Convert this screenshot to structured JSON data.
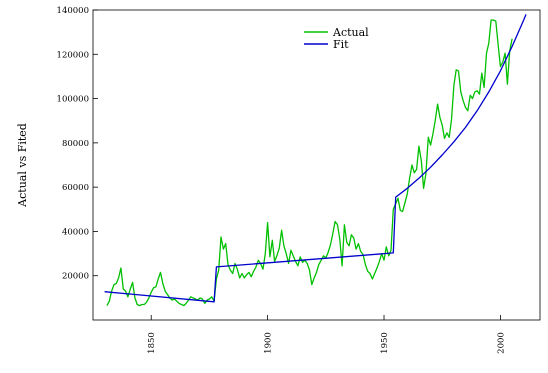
{
  "chart_data": {
    "type": "line",
    "ylabel": "Actual vs Fited",
    "xlim": [
      1825,
      2017
    ],
    "ylim": [
      0,
      140000
    ],
    "x_ticks": [
      1850,
      1900,
      1950,
      2000
    ],
    "y_ticks": [
      20000,
      40000,
      60000,
      80000,
      100000,
      120000,
      140000
    ],
    "legend_position": "top-center",
    "grid": false,
    "series": [
      {
        "name": "Actual",
        "color": "#00c000",
        "points": [
          [
            1831,
            6500
          ],
          [
            1832,
            8500
          ],
          [
            1833,
            13000
          ],
          [
            1834,
            16000
          ],
          [
            1835,
            16500
          ],
          [
            1836,
            19000
          ],
          [
            1837,
            23500
          ],
          [
            1838,
            14000
          ],
          [
            1839,
            13000
          ],
          [
            1840,
            10500
          ],
          [
            1841,
            14000
          ],
          [
            1842,
            17000
          ],
          [
            1843,
            10000
          ],
          [
            1844,
            7000
          ],
          [
            1845,
            6500
          ],
          [
            1846,
            7000
          ],
          [
            1847,
            7000
          ],
          [
            1848,
            8000
          ],
          [
            1849,
            10000
          ],
          [
            1850,
            12500
          ],
          [
            1851,
            14500
          ],
          [
            1852,
            15000
          ],
          [
            1853,
            18500
          ],
          [
            1854,
            21500
          ],
          [
            1855,
            16500
          ],
          [
            1856,
            13000
          ],
          [
            1857,
            11500
          ],
          [
            1858,
            10000
          ],
          [
            1859,
            9000
          ],
          [
            1860,
            9500
          ],
          [
            1861,
            8500
          ],
          [
            1862,
            7500
          ],
          [
            1863,
            7000
          ],
          [
            1864,
            6500
          ],
          [
            1865,
            7500
          ],
          [
            1866,
            9000
          ],
          [
            1867,
            10500
          ],
          [
            1868,
            10000
          ],
          [
            1869,
            9500
          ],
          [
            1870,
            9000
          ],
          [
            1871,
            10000
          ],
          [
            1872,
            9500
          ],
          [
            1873,
            7500
          ],
          [
            1874,
            9000
          ],
          [
            1875,
            9500
          ],
          [
            1876,
            10500
          ],
          [
            1877,
            8500
          ],
          [
            1878,
            18500
          ],
          [
            1879,
            22500
          ],
          [
            1880,
            37500
          ],
          [
            1881,
            32000
          ],
          [
            1882,
            34500
          ],
          [
            1883,
            25000
          ],
          [
            1884,
            22500
          ],
          [
            1885,
            21000
          ],
          [
            1886,
            25500
          ],
          [
            1887,
            23000
          ],
          [
            1888,
            19000
          ],
          [
            1889,
            21000
          ],
          [
            1890,
            19000
          ],
          [
            1891,
            20500
          ],
          [
            1892,
            21500
          ],
          [
            1893,
            19500
          ],
          [
            1894,
            22000
          ],
          [
            1895,
            24000
          ],
          [
            1896,
            27000
          ],
          [
            1897,
            25500
          ],
          [
            1898,
            23000
          ],
          [
            1899,
            30000
          ],
          [
            1900,
            44000
          ],
          [
            1901,
            28500
          ],
          [
            1902,
            36000
          ],
          [
            1903,
            26500
          ],
          [
            1904,
            29000
          ],
          [
            1905,
            32500
          ],
          [
            1906,
            40500
          ],
          [
            1907,
            33500
          ],
          [
            1908,
            30000
          ],
          [
            1909,
            25500
          ],
          [
            1910,
            31500
          ],
          [
            1911,
            29000
          ],
          [
            1912,
            26500
          ],
          [
            1913,
            24500
          ],
          [
            1914,
            28500
          ],
          [
            1915,
            26000
          ],
          [
            1916,
            27000
          ],
          [
            1917,
            25500
          ],
          [
            1918,
            22500
          ],
          [
            1919,
            16000
          ],
          [
            1920,
            19000
          ],
          [
            1921,
            21500
          ],
          [
            1922,
            25000
          ],
          [
            1923,
            27000
          ],
          [
            1924,
            29000
          ],
          [
            1925,
            28000
          ],
          [
            1926,
            30500
          ],
          [
            1927,
            34000
          ],
          [
            1928,
            39000
          ],
          [
            1929,
            44500
          ],
          [
            1930,
            43000
          ],
          [
            1931,
            36500
          ],
          [
            1932,
            24500
          ],
          [
            1933,
            43000
          ],
          [
            1934,
            35000
          ],
          [
            1935,
            33500
          ],
          [
            1936,
            38500
          ],
          [
            1937,
            37000
          ],
          [
            1938,
            32000
          ],
          [
            1939,
            34500
          ],
          [
            1940,
            31000
          ],
          [
            1941,
            29500
          ],
          [
            1942,
            25000
          ],
          [
            1943,
            22000
          ],
          [
            1944,
            21000
          ],
          [
            1945,
            18500
          ],
          [
            1946,
            21000
          ],
          [
            1947,
            23500
          ],
          [
            1948,
            26500
          ],
          [
            1949,
            30000
          ],
          [
            1950,
            27000
          ],
          [
            1951,
            33000
          ],
          [
            1952,
            29000
          ],
          [
            1953,
            31500
          ],
          [
            1954,
            50000
          ],
          [
            1955,
            52500
          ],
          [
            1956,
            55000
          ],
          [
            1957,
            49500
          ],
          [
            1958,
            49000
          ],
          [
            1959,
            53000
          ],
          [
            1960,
            57000
          ],
          [
            1961,
            64000
          ],
          [
            1962,
            70000
          ],
          [
            1963,
            66500
          ],
          [
            1964,
            68000
          ],
          [
            1965,
            78500
          ],
          [
            1966,
            72000
          ],
          [
            1967,
            59500
          ],
          [
            1968,
            66000
          ],
          [
            1969,
            82500
          ],
          [
            1970,
            79000
          ],
          [
            1971,
            84000
          ],
          [
            1972,
            90000
          ],
          [
            1973,
            97500
          ],
          [
            1974,
            91500
          ],
          [
            1975,
            88000
          ],
          [
            1976,
            82000
          ],
          [
            1977,
            84500
          ],
          [
            1978,
            82500
          ],
          [
            1979,
            90500
          ],
          [
            1980,
            106000
          ],
          [
            1981,
            113000
          ],
          [
            1982,
            112500
          ],
          [
            1983,
            103000
          ],
          [
            1984,
            99000
          ],
          [
            1985,
            96000
          ],
          [
            1986,
            94500
          ],
          [
            1987,
            101500
          ],
          [
            1988,
            100000
          ],
          [
            1989,
            103000
          ],
          [
            1990,
            103500
          ],
          [
            1991,
            102000
          ],
          [
            1992,
            111500
          ],
          [
            1993,
            105000
          ],
          [
            1994,
            120500
          ],
          [
            1995,
            125000
          ],
          [
            1996,
            135500
          ],
          [
            1997,
            135500
          ],
          [
            1998,
            135000
          ],
          [
            1999,
            124500
          ],
          [
            2000,
            114500
          ],
          [
            2001,
            116500
          ],
          [
            2002,
            120500
          ],
          [
            2003,
            106500
          ],
          [
            2004,
            121500
          ],
          [
            2005,
            127000
          ]
        ]
      },
      {
        "name": "Fit",
        "color": "#0000cc",
        "points": [
          [
            1830,
            12800
          ],
          [
            1877,
            8200
          ],
          [
            1878,
            24000
          ],
          [
            1954,
            30300
          ],
          [
            1955,
            55500
          ],
          [
            1960,
            59500
          ],
          [
            1965,
            64000
          ],
          [
            1970,
            69000
          ],
          [
            1975,
            74500
          ],
          [
            1980,
            80500
          ],
          [
            1985,
            87000
          ],
          [
            1990,
            94500
          ],
          [
            1995,
            103000
          ],
          [
            2000,
            112500
          ],
          [
            2005,
            123500
          ],
          [
            2010,
            135500
          ],
          [
            2011,
            138000
          ]
        ]
      }
    ]
  }
}
